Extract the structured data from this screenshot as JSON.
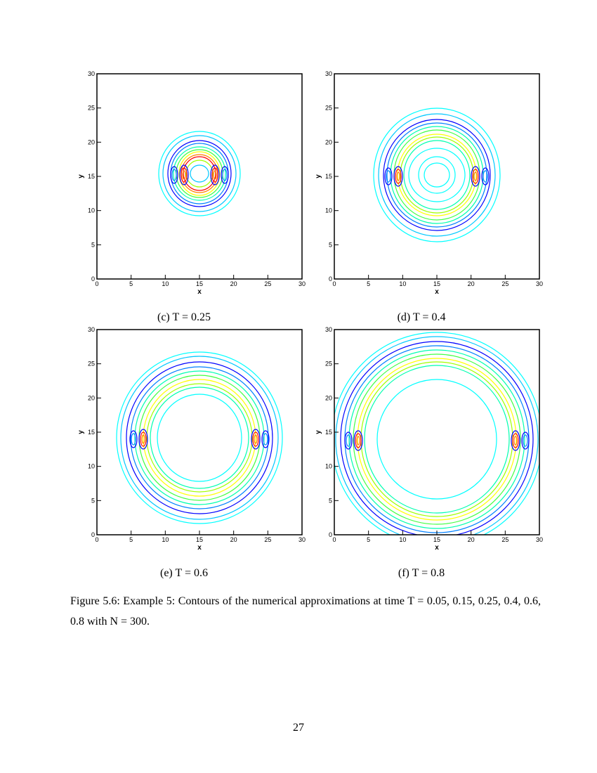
{
  "figures": [
    {
      "caption": "(c) T = 0.25",
      "xlabel": "x",
      "ylabel": "y",
      "xlim": [
        0,
        30
      ],
      "ylim": [
        0,
        30
      ],
      "xticks": [
        0,
        5,
        10,
        15,
        20,
        25,
        30
      ],
      "yticks": [
        0,
        5,
        10,
        15,
        20,
        25,
        30
      ]
    },
    {
      "caption": "(d) T = 0.4",
      "xlabel": "x",
      "ylabel": "y",
      "xlim": [
        0,
        30
      ],
      "ylim": [
        0,
        30
      ],
      "xticks": [
        0,
        5,
        10,
        15,
        20,
        25,
        30
      ],
      "yticks": [
        0,
        5,
        10,
        15,
        20,
        25,
        30
      ]
    },
    {
      "caption": "(e) T = 0.6",
      "xlabel": "x",
      "ylabel": "y",
      "xlim": [
        0,
        30
      ],
      "ylim": [
        0,
        30
      ],
      "xticks": [
        0,
        5,
        10,
        15,
        20,
        25,
        30
      ],
      "yticks": [
        0,
        5,
        10,
        15,
        20,
        25,
        30
      ]
    },
    {
      "caption": "(f) T = 0.8",
      "xlabel": "x",
      "ylabel": "y",
      "xlim": [
        0,
        30
      ],
      "ylim": [
        0,
        30
      ],
      "xticks": [
        0,
        5,
        10,
        15,
        20,
        25,
        30
      ],
      "yticks": [
        0,
        5,
        10,
        15,
        20,
        25,
        30
      ]
    }
  ],
  "figure_caption": "Figure 5.6:   Example 5:   Contours of the numerical approximations at time T = 0.05, 0.15, 0.25, 0.4, 0.6, 0.8 with N = 300.",
  "page_number": "27"
}
